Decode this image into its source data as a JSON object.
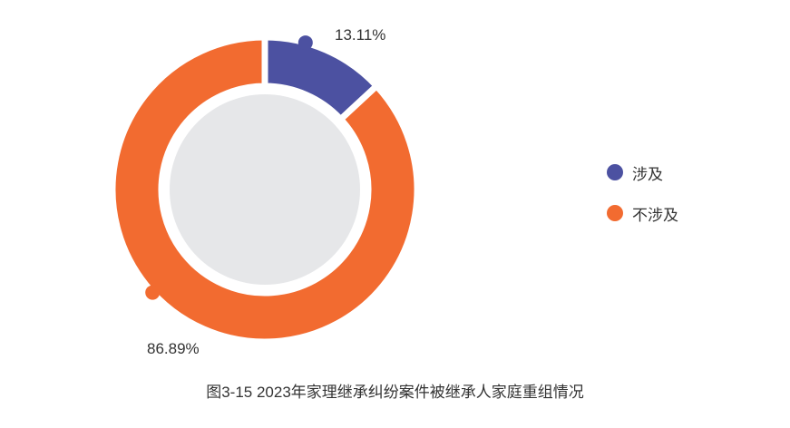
{
  "chart_data": {
    "type": "pie",
    "donut": true,
    "title": "图3-15  2023年家理继承纠纷案件被继承人家庭重组情况",
    "categories": [
      "涉及",
      "不涉及"
    ],
    "values": [
      13.11,
      86.89
    ],
    "data_labels": [
      "13.11%",
      "86.89%"
    ],
    "colors": [
      "#4c51a1",
      "#f26b30"
    ],
    "center_color": "#e6e7e9",
    "legend_position": "right"
  }
}
